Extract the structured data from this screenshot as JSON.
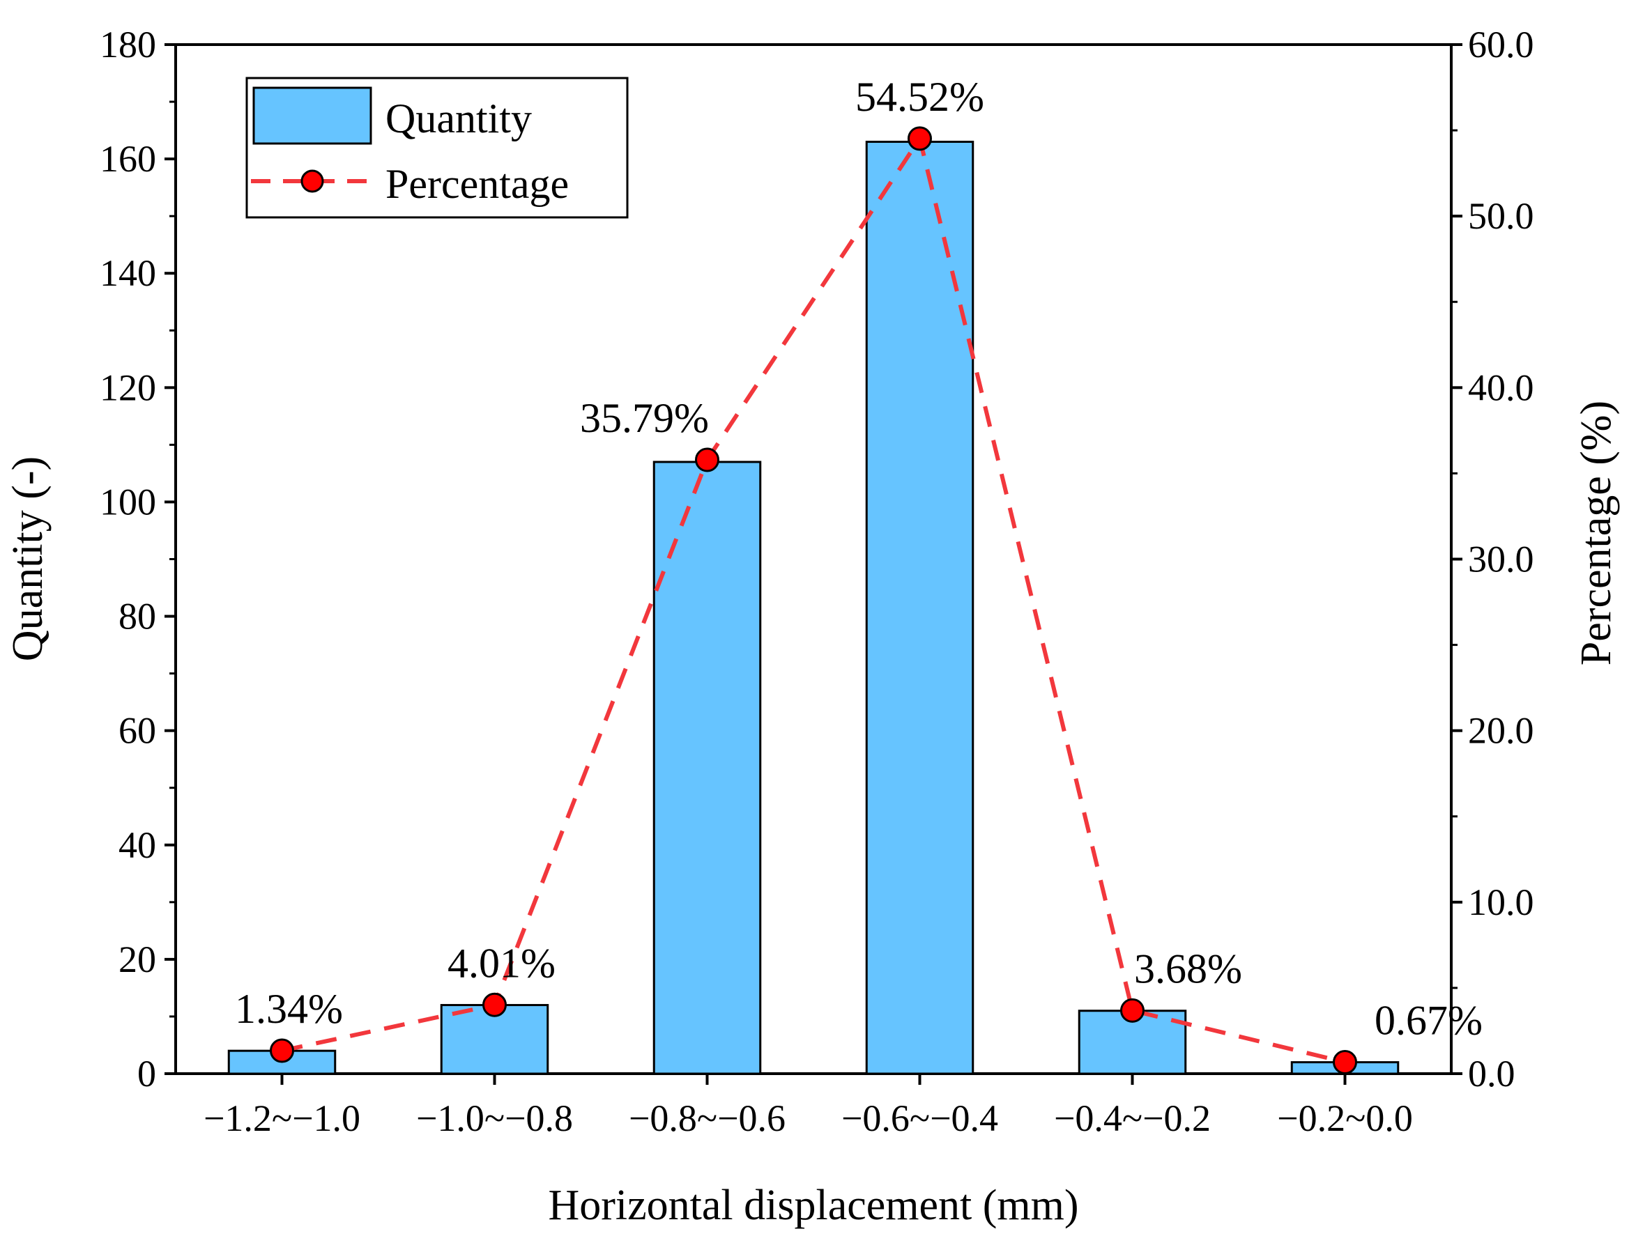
{
  "chart_data": {
    "type": "bar",
    "categories": [
      "−1.2~−1.0",
      "−1.0~−0.8",
      "−0.8~−0.6",
      "−0.6~−0.4",
      "−0.4~−0.2",
      "−0.2~0.0"
    ],
    "xlabel": "Horizontal displacement (mm)",
    "series": [
      {
        "name": "Quantity",
        "type": "bar",
        "axis": "left",
        "values": [
          4,
          12,
          107,
          163,
          11,
          2
        ],
        "color": "#66c4ff",
        "edge_color": "#000000"
      },
      {
        "name": "Percentage",
        "type": "line",
        "axis": "right",
        "values": [
          1.34,
          4.01,
          35.79,
          54.52,
          3.68,
          0.67
        ],
        "labels": [
          "1.34%",
          "4.01%",
          "35.79%",
          "54.52%",
          "3.68%",
          "0.67%"
        ],
        "line_color": "#f2373c",
        "line_style": "dashed",
        "marker_color": "#ff0000"
      }
    ],
    "y_left": {
      "label": "Quantity (-)",
      "ylim": [
        0,
        180
      ],
      "ticks": [
        0,
        20,
        40,
        60,
        80,
        100,
        120,
        140,
        160,
        180
      ],
      "tick_labels": [
        "0",
        "20",
        "40",
        "60",
        "80",
        "100",
        "120",
        "140",
        "160",
        "180"
      ]
    },
    "y_right": {
      "label": "Percentage (%)",
      "ylim": [
        0,
        60
      ],
      "ticks": [
        0,
        10,
        20,
        30,
        40,
        50,
        60
      ],
      "tick_labels": [
        "0.0",
        "10.0",
        "20.0",
        "30.0",
        "40.0",
        "50.0",
        "60.0"
      ]
    },
    "legend": {
      "position": "top-left",
      "items": [
        "Quantity",
        "Percentage"
      ]
    },
    "grid": false
  }
}
